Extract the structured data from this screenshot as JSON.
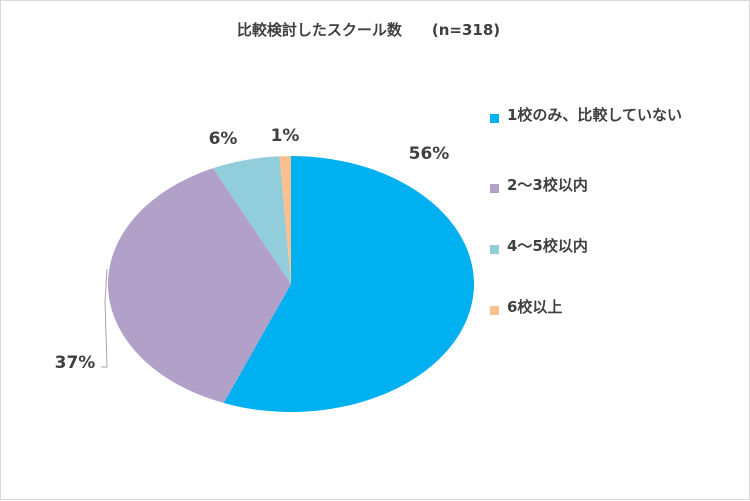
{
  "title": "比較検討したスクール数　　(n=318)",
  "colors": {
    "slice1": "#00b0f0",
    "slice2": "#b1a0c7",
    "slice3": "#92cddc",
    "slice4": "#fac090",
    "leader": "#a6a6a6",
    "text": "#404040"
  },
  "chart_data": {
    "type": "pie",
    "title": "比較検討したスクール数　　(n=318)",
    "n": 318,
    "start_angle_deg": 0,
    "direction": "clockwise",
    "legend_position": "right",
    "slices": [
      {
        "label": "1校のみ、比較していない",
        "value": 56,
        "value_label": "56%",
        "color": "#00b0f0"
      },
      {
        "label": "2～3校以内",
        "value": 37,
        "value_label": "37%",
        "color": "#b1a0c7"
      },
      {
        "label": "4～5校以内",
        "value": 6,
        "value_label": "6%",
        "color": "#92cddc"
      },
      {
        "label": "6校以上",
        "value": 1,
        "value_label": "1%",
        "color": "#fac090"
      }
    ]
  },
  "legend": {
    "items": [
      {
        "label": "1校のみ、比較していない",
        "color": "#00b0f0"
      },
      {
        "label": "2～3校以内",
        "color": "#b1a0c7"
      },
      {
        "label": "4～5校以内",
        "color": "#92cddc"
      },
      {
        "label": "6校以上",
        "color": "#fac090"
      }
    ]
  }
}
